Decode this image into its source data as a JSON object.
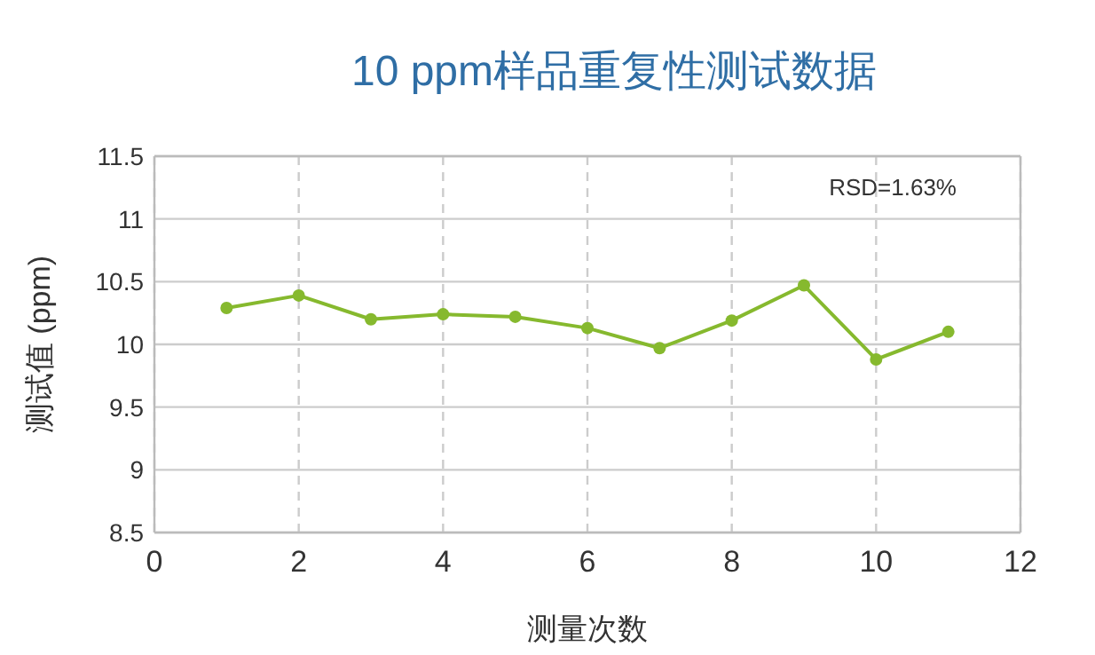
{
  "chart_data": {
    "type": "line",
    "title": "10 ppm样品重复性测试数据",
    "xlabel": "测量次数",
    "ylabel": "测试值 (ppm)",
    "x": [
      1,
      2,
      3,
      4,
      5,
      6,
      7,
      8,
      9,
      10,
      11
    ],
    "series": [
      {
        "color": "#86b92e",
        "values": [
          10.29,
          10.39,
          10.2,
          10.24,
          10.22,
          10.13,
          9.97,
          10.19,
          10.47,
          9.88,
          10.1
        ]
      }
    ],
    "xlim": [
      0,
      12
    ],
    "xticks": [
      0,
      2,
      4,
      6,
      8,
      10,
      12
    ],
    "ylim": [
      8.5,
      11.5
    ],
    "yticks": [
      8.5,
      9,
      9.5,
      10,
      10.5,
      11,
      11.5
    ],
    "grid": true,
    "marker": "circle",
    "line_style": "solid",
    "annotations": [
      "RSD=1.63%"
    ]
  }
}
